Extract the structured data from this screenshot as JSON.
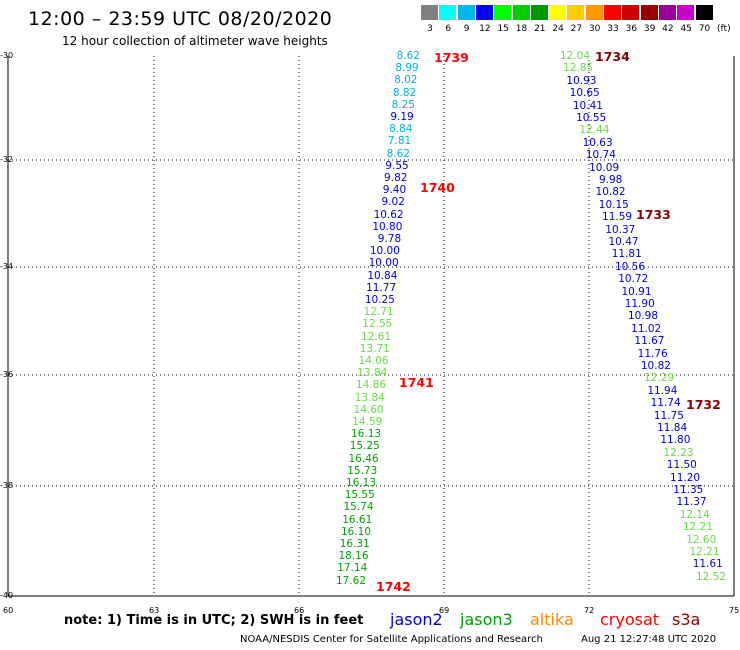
{
  "header": {
    "title": "12:00 – 23:59 UTC 08/20/2020",
    "subtitle": "12 hour collection of altimeter wave heights"
  },
  "legend": {
    "swatches": [
      {
        "label": "3",
        "color": "#808080"
      },
      {
        "label": "6",
        "color": "#00ffff"
      },
      {
        "label": "9",
        "color": "#00b8e8"
      },
      {
        "label": "12",
        "color": "#0000ff"
      },
      {
        "label": "15",
        "color": "#00ff00"
      },
      {
        "label": "18",
        "color": "#00cc00"
      },
      {
        "label": "21",
        "color": "#009900"
      },
      {
        "label": "24",
        "color": "#ffff00"
      },
      {
        "label": "27",
        "color": "#ffcc00"
      },
      {
        "label": "30",
        "color": "#ff9900"
      },
      {
        "label": "33",
        "color": "#ff0000"
      },
      {
        "label": "36",
        "color": "#cc0000"
      },
      {
        "label": "39",
        "color": "#990000"
      },
      {
        "label": "42",
        "color": "#990099"
      },
      {
        "label": "45",
        "color": "#cc00cc"
      },
      {
        "label": "70",
        "color": "#000000"
      }
    ],
    "unit": "(ft)"
  },
  "axes": {
    "x_ticks": [
      "60",
      "63",
      "66",
      "69",
      "72",
      "75"
    ],
    "y_ticks": [
      "-30",
      "-32",
      "-34",
      "-36",
      "-38",
      "-40"
    ]
  },
  "colors": {
    "cyan": "#00b0e0",
    "blue": "#0000cc",
    "lightgreen": "#66dd44",
    "green": "#00a000",
    "red": "#ff0000",
    "darkred": "#880000"
  },
  "track_left": {
    "values": [
      {
        "v": "8.62",
        "c": "cyan"
      },
      {
        "v": "8.99",
        "c": "cyan"
      },
      {
        "v": "8.02",
        "c": "cyan"
      },
      {
        "v": "8.82",
        "c": "cyan"
      },
      {
        "v": "8.25",
        "c": "cyan"
      },
      {
        "v": "9.19",
        "c": "blue"
      },
      {
        "v": "8.84",
        "c": "cyan"
      },
      {
        "v": "7.81",
        "c": "cyan"
      },
      {
        "v": "8.62",
        "c": "cyan"
      },
      {
        "v": "9.55",
        "c": "blue"
      },
      {
        "v": "9.82",
        "c": "blue"
      },
      {
        "v": "9.40",
        "c": "blue"
      },
      {
        "v": "9.02",
        "c": "blue"
      },
      {
        "v": "10.62",
        "c": "blue"
      },
      {
        "v": "10.80",
        "c": "blue"
      },
      {
        "v": "9.78",
        "c": "blue"
      },
      {
        "v": "10.00",
        "c": "blue"
      },
      {
        "v": "10.00",
        "c": "blue"
      },
      {
        "v": "10.84",
        "c": "blue"
      },
      {
        "v": "11.77",
        "c": "blue"
      },
      {
        "v": "10.25",
        "c": "blue"
      },
      {
        "v": "12.71",
        "c": "lightgreen"
      },
      {
        "v": "12.55",
        "c": "lightgreen"
      },
      {
        "v": "12.61",
        "c": "lightgreen"
      },
      {
        "v": "13.71",
        "c": "lightgreen"
      },
      {
        "v": "14.06",
        "c": "lightgreen"
      },
      {
        "v": "13.84",
        "c": "lightgreen"
      },
      {
        "v": "14.86",
        "c": "lightgreen"
      },
      {
        "v": "13.84",
        "c": "lightgreen"
      },
      {
        "v": "14.60",
        "c": "lightgreen"
      },
      {
        "v": "14.59",
        "c": "lightgreen"
      },
      {
        "v": "16.13",
        "c": "green"
      },
      {
        "v": "15.25",
        "c": "green"
      },
      {
        "v": "16.46",
        "c": "green"
      },
      {
        "v": "15.73",
        "c": "green"
      },
      {
        "v": "16.13",
        "c": "green"
      },
      {
        "v": "15.55",
        "c": "green"
      },
      {
        "v": "15.74",
        "c": "green"
      },
      {
        "v": "16.61",
        "c": "green"
      },
      {
        "v": "16.10",
        "c": "green"
      },
      {
        "v": "16.31",
        "c": "green"
      },
      {
        "v": "18.16",
        "c": "green"
      },
      {
        "v": "17.14",
        "c": "green"
      },
      {
        "v": "17.62",
        "c": "green"
      }
    ],
    "times": [
      "1739",
      "1740",
      "1741",
      "1742"
    ]
  },
  "track_right": {
    "values": [
      {
        "v": "12.04",
        "c": "lightgreen"
      },
      {
        "v": "12.85",
        "c": "lightgreen"
      },
      {
        "v": "10.93",
        "c": "blue"
      },
      {
        "v": "10.65",
        "c": "blue"
      },
      {
        "v": "10.41",
        "c": "blue"
      },
      {
        "v": "10.55",
        "c": "blue"
      },
      {
        "v": "12.44",
        "c": "lightgreen"
      },
      {
        "v": "10.63",
        "c": "blue"
      },
      {
        "v": "10.74",
        "c": "blue"
      },
      {
        "v": "10.09",
        "c": "blue"
      },
      {
        "v": "9.98",
        "c": "blue"
      },
      {
        "v": "10.82",
        "c": "blue"
      },
      {
        "v": "10.15",
        "c": "blue"
      },
      {
        "v": "11.59",
        "c": "blue"
      },
      {
        "v": "10.37",
        "c": "blue"
      },
      {
        "v": "10.47",
        "c": "blue"
      },
      {
        "v": "11.81",
        "c": "blue"
      },
      {
        "v": "10.56",
        "c": "blue"
      },
      {
        "v": "10.72",
        "c": "blue"
      },
      {
        "v": "10.91",
        "c": "blue"
      },
      {
        "v": "11.90",
        "c": "blue"
      },
      {
        "v": "10.98",
        "c": "blue"
      },
      {
        "v": "11.02",
        "c": "blue"
      },
      {
        "v": "11.67",
        "c": "blue"
      },
      {
        "v": "11.76",
        "c": "blue"
      },
      {
        "v": "10.82",
        "c": "blue"
      },
      {
        "v": "12.29",
        "c": "lightgreen"
      },
      {
        "v": "11.94",
        "c": "blue"
      },
      {
        "v": "11.74",
        "c": "blue"
      },
      {
        "v": "11.75",
        "c": "blue"
      },
      {
        "v": "11.84",
        "c": "blue"
      },
      {
        "v": "11.80",
        "c": "blue"
      },
      {
        "v": "12.23",
        "c": "lightgreen"
      },
      {
        "v": "11.50",
        "c": "blue"
      },
      {
        "v": "11.20",
        "c": "blue"
      },
      {
        "v": "11.35",
        "c": "blue"
      },
      {
        "v": "11.37",
        "c": "blue"
      },
      {
        "v": "12.14",
        "c": "lightgreen"
      },
      {
        "v": "12.21",
        "c": "lightgreen"
      },
      {
        "v": "12.60",
        "c": "lightgreen"
      },
      {
        "v": "12.21",
        "c": "lightgreen"
      },
      {
        "v": "11.61",
        "c": "blue"
      },
      {
        "v": "12.52",
        "c": "lightgreen"
      }
    ],
    "times": [
      "1734",
      "1733",
      "1732"
    ]
  },
  "footer": {
    "note": "note: 1) Time is in UTC; 2) SWH is in feet",
    "satellites": [
      {
        "name": "jason2",
        "color": "#0000cc"
      },
      {
        "name": "jason3",
        "color": "#00a000"
      },
      {
        "name": "altika",
        "color": "#ff8800"
      },
      {
        "name": "cryosat",
        "color": "#ff0000"
      },
      {
        "name": "s3a",
        "color": "#880000"
      }
    ],
    "credit": "NOAA/NESDIS Center for Satellite Applications and Research",
    "timestamp": "Aug 21 12:27:48 UTC 2020"
  }
}
